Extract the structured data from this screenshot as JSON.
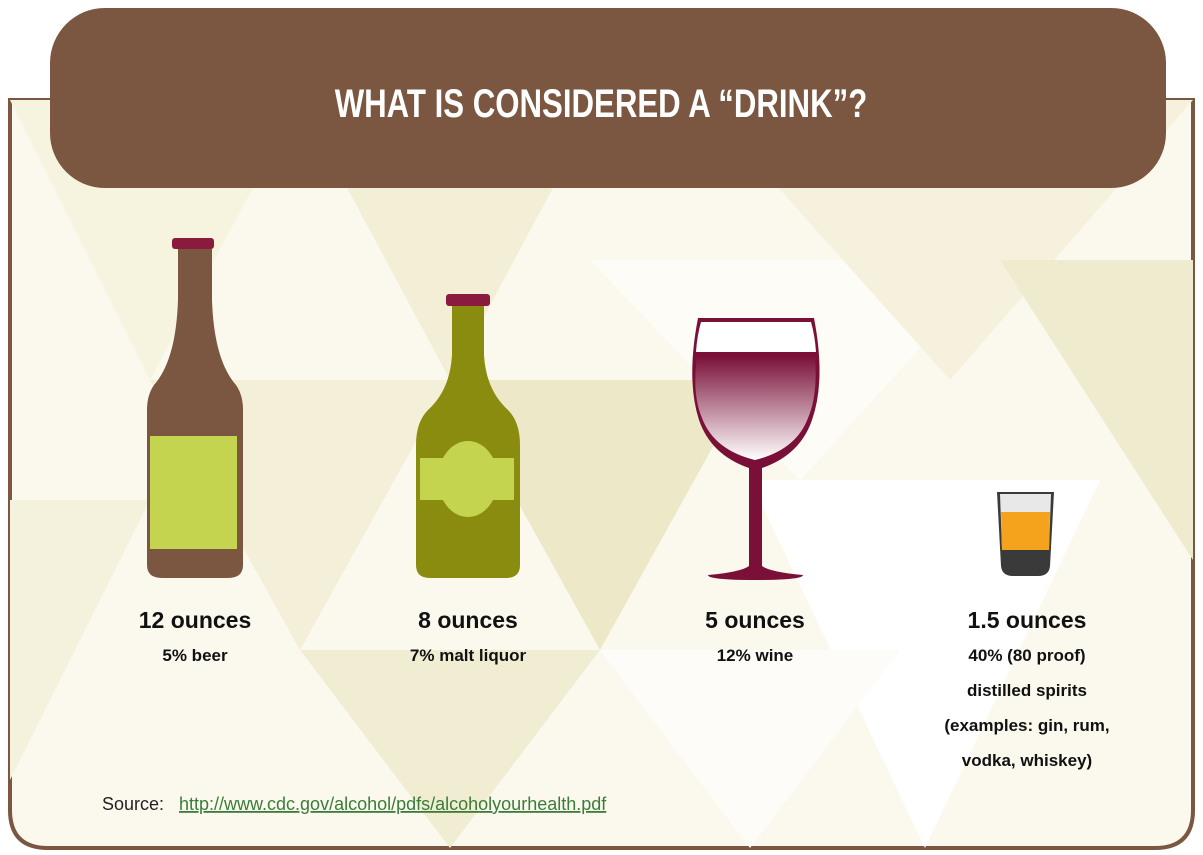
{
  "title": "WHAT IS CONSIDERED A “DRINK”?",
  "items": [
    {
      "amount": "12 ounces",
      "description": [
        "5% beer"
      ]
    },
    {
      "amount": "8 ounces",
      "description": [
        "7% malt liquor"
      ]
    },
    {
      "amount": "5 ounces",
      "description": [
        "12% wine"
      ]
    },
    {
      "amount": "1.5 ounces",
      "description": [
        "40% (80 proof)",
        "distilled spirits",
        "(examples: gin, rum,",
        "vodka, whiskey)"
      ]
    }
  ],
  "source": {
    "label": "Source:",
    "link": "http://www.cdc.gov/alcohol/pdfs/alcoholyourhealth.pdf"
  }
}
